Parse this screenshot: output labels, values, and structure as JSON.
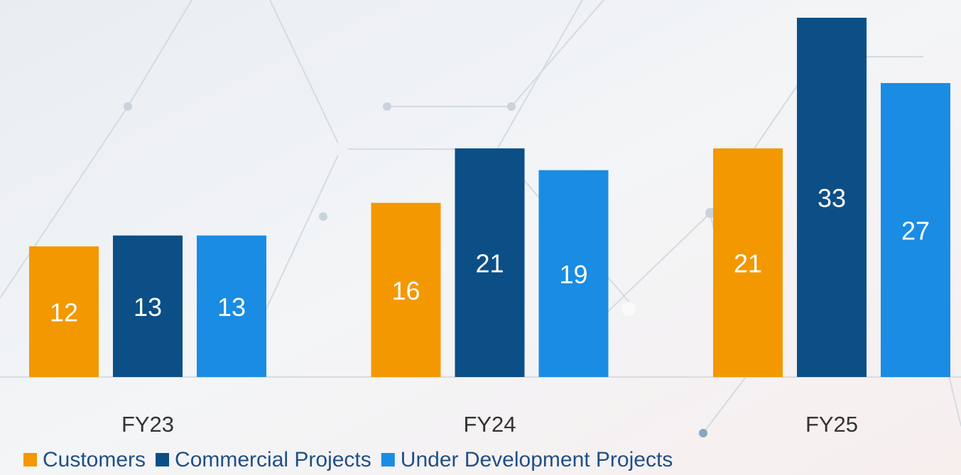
{
  "chart_data": {
    "type": "bar",
    "categories": [
      "FY23",
      "FY24",
      "FY25"
    ],
    "series": [
      {
        "name": "Customers",
        "color": "#f39800",
        "values": [
          12,
          16,
          21
        ]
      },
      {
        "name": "Commercial Projects",
        "color": "#0b4f86",
        "values": [
          13,
          21,
          33
        ]
      },
      {
        "name": "Under Development Projects",
        "color": "#1a8ce3",
        "values": [
          13,
          19,
          27
        ]
      }
    ]
  }
}
